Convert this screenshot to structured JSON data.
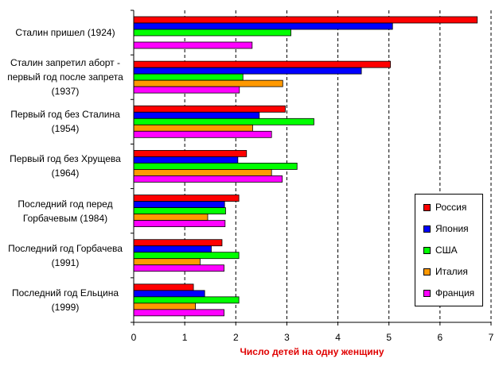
{
  "chart_data": {
    "type": "bar",
    "orientation": "horizontal",
    "categories": [
      "Сталин пришел (1924)",
      "Сталин запретил аборт - первый год после запрета (1937)",
      "Первый год без Сталина (1954)",
      "Первый год без Хрущева (1964)",
      "Последний год перед Горбачевым (1984)",
      "Последний год Горбачева (1991)",
      "Последний год Ельцина (1999)"
    ],
    "category_lines": [
      [
        "Сталин пришел (1924)"
      ],
      [
        "Сталин запретил аборт -",
        "первый год после запрета",
        "(1937)"
      ],
      [
        "Первый год без Сталина",
        "(1954)"
      ],
      [
        "Первый год без Хрущева",
        "(1964)"
      ],
      [
        "Последний год перед",
        "Горбачевым (1984)"
      ],
      [
        "Последний год Горбачева",
        "(1991)"
      ],
      [
        "Последний год Ельцина",
        "(1999)"
      ]
    ],
    "series": [
      {
        "name": "Россия",
        "color": "#ff0000",
        "values": [
          6.73,
          5.03,
          2.97,
          2.21,
          2.06,
          1.73,
          1.17
        ]
      },
      {
        "name": "Япония",
        "color": "#0000ff",
        "values": [
          5.07,
          4.46,
          2.46,
          2.04,
          1.78,
          1.52,
          1.39
        ]
      },
      {
        "name": "США",
        "color": "#00ff00",
        "values": [
          3.08,
          2.14,
          3.53,
          3.2,
          1.8,
          2.06,
          2.06
        ]
      },
      {
        "name": "Италия",
        "color": "#ff9900",
        "values": [
          null,
          2.92,
          2.33,
          2.7,
          1.45,
          1.3,
          1.21
        ]
      },
      {
        "name": "Франция",
        "color": "#ff00ff",
        "values": [
          2.32,
          2.07,
          2.7,
          2.91,
          1.79,
          1.77,
          1.77
        ]
      }
    ],
    "xticks": [
      "0",
      "1",
      "2",
      "3",
      "4",
      "5",
      "6",
      "7"
    ],
    "xlim": [
      0,
      7
    ],
    "xlabel": "Число детей на одну женщину",
    "ylabel": "",
    "title": "",
    "grid": "vertical dashed",
    "legend_position": "bottom-right"
  }
}
